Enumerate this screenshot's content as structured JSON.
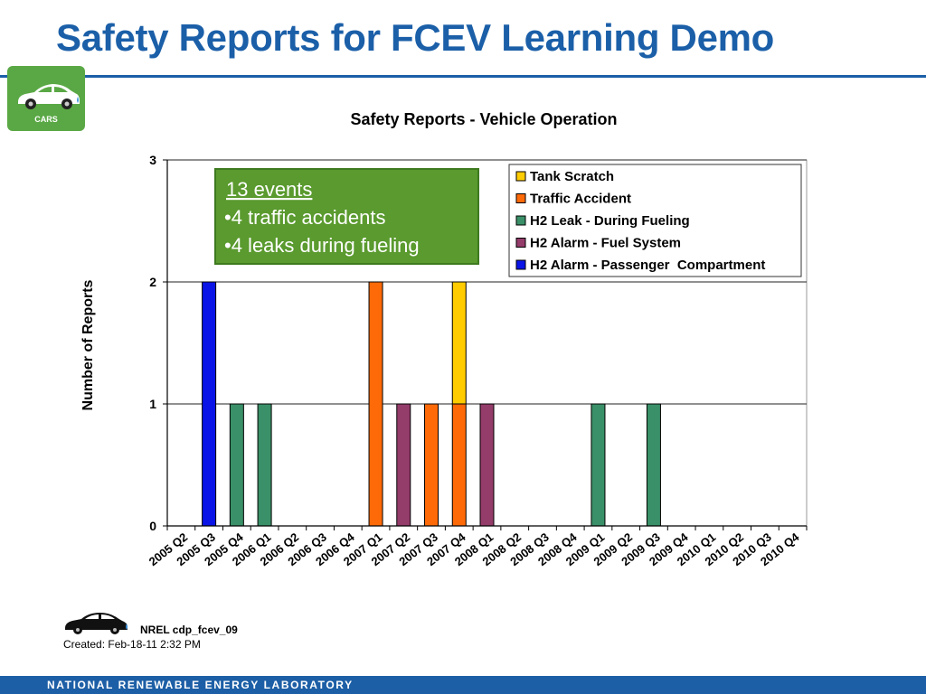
{
  "slide": {
    "title": "Safety Reports for FCEV Learning Demo",
    "badge_label": "CARS",
    "footer_id": "NREL cdp_fcev_09",
    "footer_created": "Created: Feb-18-11 2:32 PM",
    "bottom_bar_text": "NATIONAL RENEWABLE ENERGY LABORATORY"
  },
  "colors": {
    "title": "#1b5fa8",
    "badge": "#5aa845",
    "callout_bg": "#5a9a2e",
    "bottom_bar": "#1d5fa6"
  },
  "callout": {
    "heading": "13 events",
    "line1": "•4 traffic accidents",
    "line2": "•4 leaks during fueling"
  },
  "chart_data": {
    "type": "bar",
    "stacked": true,
    "title": "Safety Reports - Vehicle Operation",
    "xlabel": "",
    "ylabel": "Number of Reports",
    "ylim": [
      0,
      3
    ],
    "yticks": [
      0,
      1,
      2,
      3
    ],
    "grid": true,
    "legend_position": "top-right",
    "categories": [
      "2005 Q2",
      "2005 Q3",
      "2005 Q4",
      "2006 Q1",
      "2006 Q2",
      "2006 Q3",
      "2006 Q4",
      "2007 Q1",
      "2007 Q2",
      "2007 Q3",
      "2007 Q4",
      "2008 Q1",
      "2008 Q2",
      "2008 Q3",
      "2008 Q4",
      "2009 Q1",
      "2009 Q2",
      "2009 Q3",
      "2009 Q4",
      "2010 Q1",
      "2010 Q2",
      "2010 Q3",
      "2010 Q4"
    ],
    "series": [
      {
        "name": "H2 Alarm - Passenger  Compartment",
        "color": "#0a14e6",
        "values": [
          0,
          2,
          0,
          0,
          0,
          0,
          0,
          0,
          0,
          0,
          0,
          0,
          0,
          0,
          0,
          0,
          0,
          0,
          0,
          0,
          0,
          0,
          0
        ]
      },
      {
        "name": "H2 Alarm - Fuel System",
        "color": "#943c6a",
        "values": [
          0,
          0,
          0,
          0,
          0,
          0,
          0,
          0,
          1,
          0,
          0,
          1,
          0,
          0,
          0,
          0,
          0,
          0,
          0,
          0,
          0,
          0,
          0
        ]
      },
      {
        "name": "H2 Leak - During Fueling",
        "color": "#3a9068",
        "values": [
          0,
          0,
          1,
          1,
          0,
          0,
          0,
          0,
          0,
          0,
          0,
          0,
          0,
          0,
          0,
          1,
          0,
          1,
          0,
          0,
          0,
          0,
          0
        ]
      },
      {
        "name": "Traffic Accident",
        "color": "#ff6a08",
        "values": [
          0,
          0,
          0,
          0,
          0,
          0,
          0,
          2,
          0,
          1,
          1,
          0,
          0,
          0,
          0,
          0,
          0,
          0,
          0,
          0,
          0,
          0,
          0
        ]
      },
      {
        "name": "Tank Scratch",
        "color": "#ffcc00",
        "values": [
          0,
          0,
          0,
          0,
          0,
          0,
          0,
          0,
          0,
          0,
          1,
          0,
          0,
          0,
          0,
          0,
          0,
          0,
          0,
          0,
          0,
          0,
          0
        ]
      }
    ],
    "legend_order": [
      "Tank Scratch",
      "Traffic Accident",
      "H2 Leak - During Fueling",
      "H2 Alarm - Fuel System",
      "H2 Alarm - Passenger  Compartment"
    ]
  }
}
